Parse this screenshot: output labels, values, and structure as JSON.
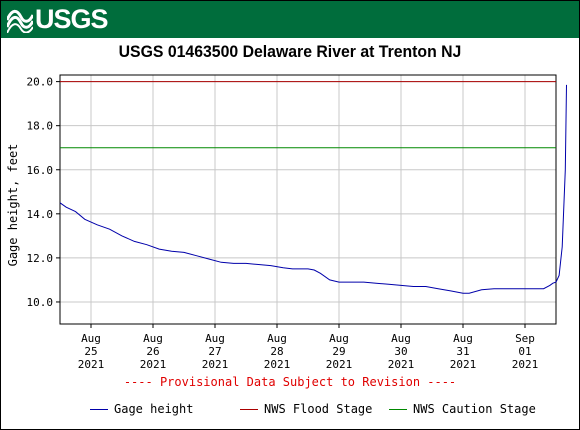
{
  "header": {
    "logo_text": "USGS"
  },
  "chart_data": {
    "type": "line",
    "title": "USGS 01463500 Delaware River at Trenton NJ",
    "ylabel": "Gage height, feet",
    "xlabel": "",
    "ylim": [
      9.0,
      20.3
    ],
    "yticks": [
      10.0,
      12.0,
      14.0,
      16.0,
      18.0,
      20.0
    ],
    "ytick_labels": [
      "10.0",
      "12.0",
      "14.0",
      "16.0",
      "18.0",
      "20.0"
    ],
    "xticks": [
      {
        "x": 0.5,
        "line1": "Aug",
        "line2": "25",
        "line3": "2021"
      },
      {
        "x": 1.5,
        "line1": "Aug",
        "line2": "26",
        "line3": "2021"
      },
      {
        "x": 2.5,
        "line1": "Aug",
        "line2": "27",
        "line3": "2021"
      },
      {
        "x": 3.5,
        "line1": "Aug",
        "line2": "28",
        "line3": "2021"
      },
      {
        "x": 4.5,
        "line1": "Aug",
        "line2": "29",
        "line3": "2021"
      },
      {
        "x": 5.5,
        "line1": "Aug",
        "line2": "30",
        "line3": "2021"
      },
      {
        "x": 6.5,
        "line1": "Aug",
        "line2": "31",
        "line3": "2021"
      },
      {
        "x": 7.5,
        "line1": "Sep",
        "line2": "01",
        "line3": "2021"
      }
    ],
    "xlim": [
      0,
      8
    ],
    "grid": true,
    "series": [
      {
        "name": "Gage height",
        "color": "#0000aa",
        "x": [
          0.0,
          0.1,
          0.25,
          0.4,
          0.6,
          0.8,
          1.0,
          1.2,
          1.4,
          1.6,
          1.8,
          2.0,
          2.2,
          2.4,
          2.6,
          2.8,
          3.0,
          3.2,
          3.4,
          3.6,
          3.75,
          3.9,
          4.0,
          4.1,
          4.2,
          4.35,
          4.5,
          4.7,
          4.9,
          5.1,
          5.3,
          5.5,
          5.7,
          5.9,
          6.1,
          6.3,
          6.5,
          6.6,
          6.8,
          7.0,
          7.2,
          7.4,
          7.6,
          7.8,
          7.9,
          7.95,
          8.0,
          8.05,
          8.1,
          8.15,
          8.17
        ],
        "values": [
          14.5,
          14.3,
          14.1,
          13.75,
          13.5,
          13.3,
          13.0,
          12.75,
          12.6,
          12.4,
          12.3,
          12.25,
          12.1,
          11.95,
          11.8,
          11.75,
          11.75,
          11.7,
          11.65,
          11.55,
          11.5,
          11.5,
          11.5,
          11.45,
          11.3,
          11.0,
          10.9,
          10.9,
          10.9,
          10.85,
          10.8,
          10.75,
          10.7,
          10.7,
          10.6,
          10.5,
          10.4,
          10.4,
          10.55,
          10.6,
          10.6,
          10.6,
          10.6,
          10.6,
          10.75,
          10.85,
          10.9,
          11.2,
          12.5,
          16.0,
          19.85
        ]
      },
      {
        "name": "NWS Flood Stage",
        "color": "#aa0000",
        "constant": 20.0
      },
      {
        "name": "NWS Caution Stage",
        "color": "#008800",
        "constant": 17.0
      }
    ],
    "note": "---- Provisional Data Subject to Revision ----"
  }
}
